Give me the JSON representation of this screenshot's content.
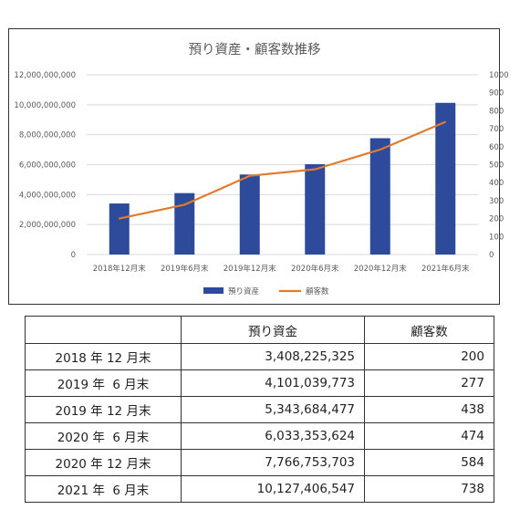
{
  "chart_data": {
    "type": "bar+line",
    "title": "預り資産・顧客数推移",
    "categories": [
      "2018年12月末",
      "2019年6月末",
      "2019年12月末",
      "2020年6月末",
      "2020年12月末",
      "2021年6月末"
    ],
    "series": [
      {
        "name": "預り資産",
        "type": "bar",
        "axis": "left",
        "color": "#2e4a9a",
        "values": [
          3408225325,
          4101039773,
          5343684477,
          6033353624,
          7766753703,
          10127406547
        ]
      },
      {
        "name": "顧客数",
        "type": "line",
        "axis": "right",
        "color": "#e07b2e",
        "values": [
          200,
          277,
          438,
          474,
          584,
          738
        ]
      }
    ],
    "y_left": {
      "min": 0,
      "max": 12000000000,
      "step": 2000000000,
      "ticks": [
        "0",
        "2,000,000,000",
        "4,000,000,000",
        "6,000,000,000",
        "8,000,000,000",
        "10,000,000,000",
        "12,000,000,000"
      ]
    },
    "y_right": {
      "min": 0,
      "max": 1000,
      "step": 100,
      "ticks": [
        "0",
        "100",
        "200",
        "300",
        "400",
        "500",
        "600",
        "700",
        "800",
        "900",
        "1000"
      ]
    },
    "grid": true,
    "legend": "bottom",
    "grid_color": "#d9d9d9"
  },
  "table": {
    "headers": [
      "",
      "預り資金",
      "顧客数"
    ],
    "rows": [
      {
        "period": "2018 年 12 月末",
        "assets": "3,408,225,325",
        "customers": "200"
      },
      {
        "period": "2019 年  6 月末",
        "assets": "4,101,039,773",
        "customers": "277"
      },
      {
        "period": "2019 年 12 月末",
        "assets": "5,343,684,477",
        "customers": "438"
      },
      {
        "period": "2020 年  6 月末",
        "assets": "6,033,353,624",
        "customers": "474"
      },
      {
        "period": "2020 年 12 月末",
        "assets": "7,766,753,703",
        "customers": "584"
      },
      {
        "period": "2021 年  6 月末",
        "assets": "10,127,406,547",
        "customers": "738"
      }
    ]
  }
}
